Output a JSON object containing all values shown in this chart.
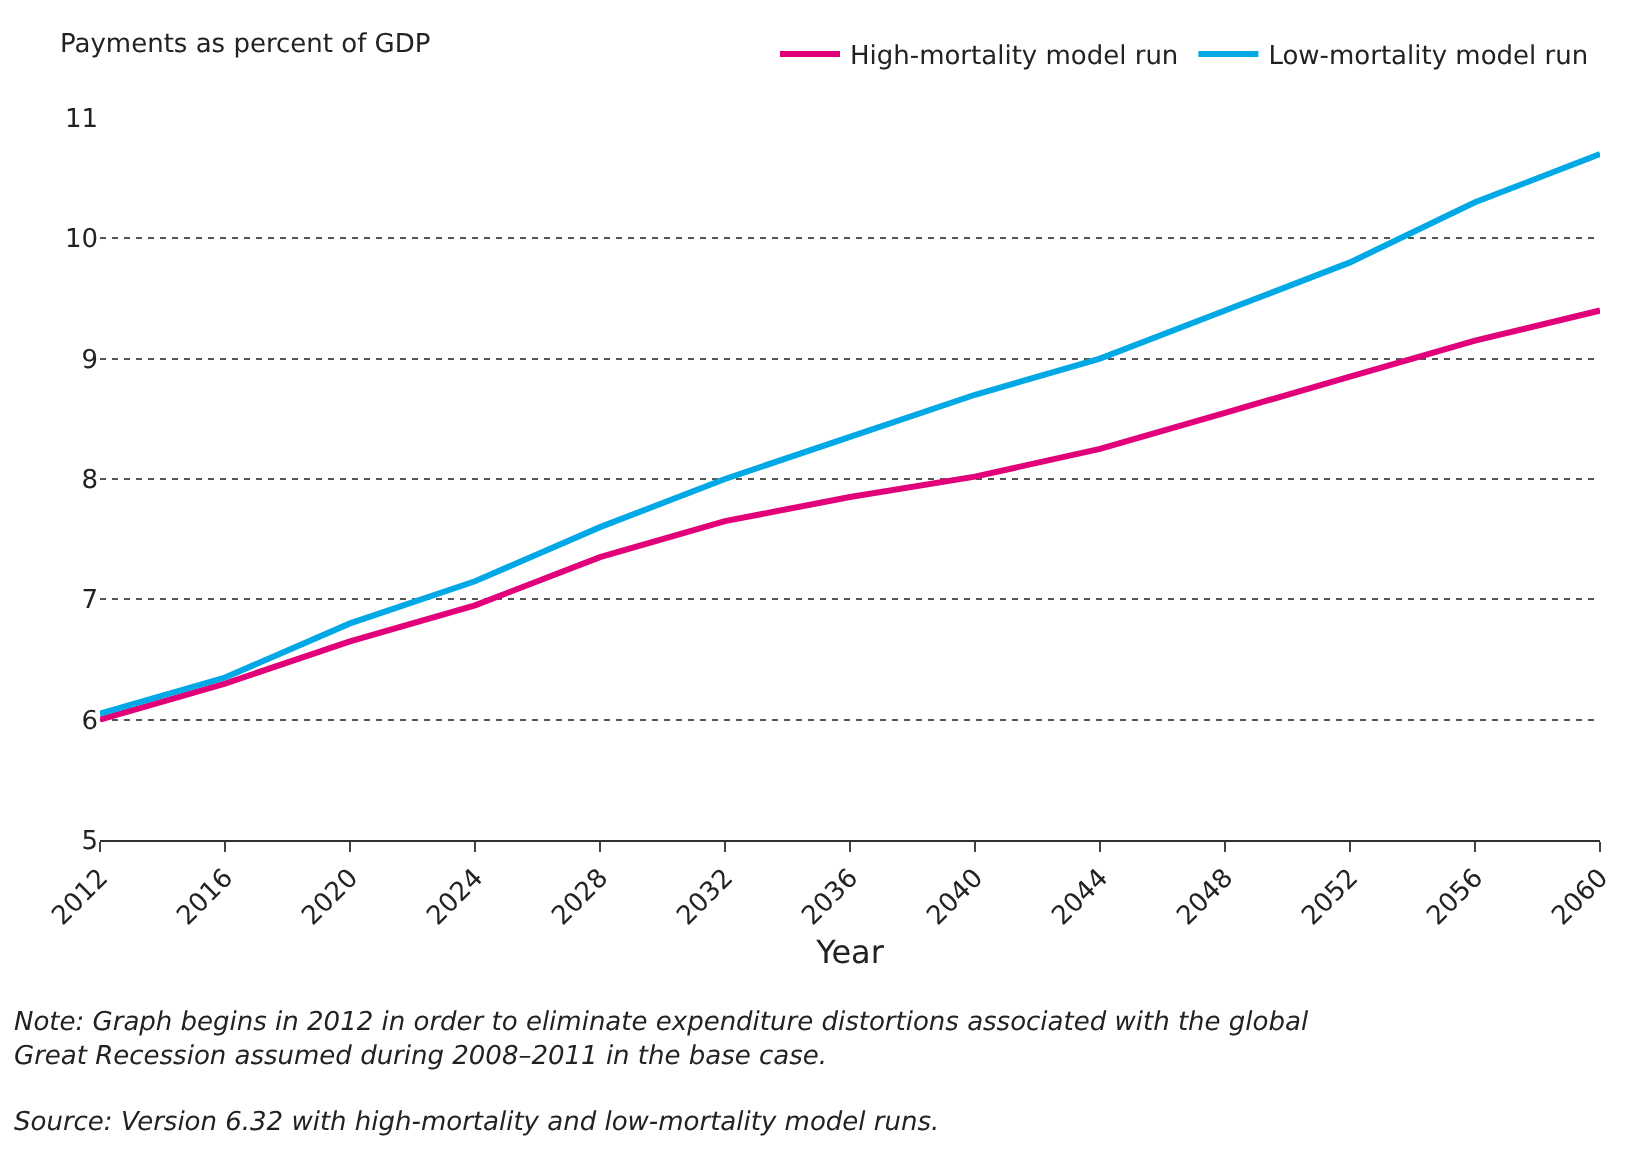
{
  "chart_data": {
    "type": "line",
    "ylabel": "Payments as percent of GDP",
    "xlabel": "Year",
    "x": [
      2012,
      2016,
      2020,
      2024,
      2028,
      2032,
      2036,
      2040,
      2044,
      2048,
      2052,
      2056,
      2060
    ],
    "series": [
      {
        "name": "High-mortality model run",
        "color": "#e2007a",
        "values": [
          6.0,
          6.3,
          6.65,
          6.95,
          7.35,
          7.65,
          7.85,
          8.02,
          8.25,
          8.55,
          8.85,
          9.15,
          9.4
        ]
      },
      {
        "name": "Low-mortality model run",
        "color": "#00a9e6",
        "values": [
          6.05,
          6.35,
          6.8,
          7.15,
          7.6,
          8.0,
          8.35,
          8.7,
          9.0,
          9.4,
          9.8,
          10.3,
          10.7
        ]
      }
    ],
    "xlim": [
      2012,
      2060
    ],
    "xticks": [
      2012,
      2016,
      2020,
      2024,
      2028,
      2032,
      2036,
      2040,
      2044,
      2048,
      2052,
      2056,
      2060
    ],
    "ylim": [
      5,
      11
    ],
    "yticks": [
      5,
      6,
      7,
      8,
      9,
      10,
      11
    ],
    "grid": "y",
    "legend": "top right",
    "marker": "none",
    "line_style": "solid",
    "annotations": [
      "Note: Graph begins in 2012 in order to eliminate expenditure distortions associated with the global\nGreat Recession assumed during 2008–2011 in the base case.",
      "Source: Version 6.32 with high-mortality and low-mortality model runs."
    ]
  }
}
